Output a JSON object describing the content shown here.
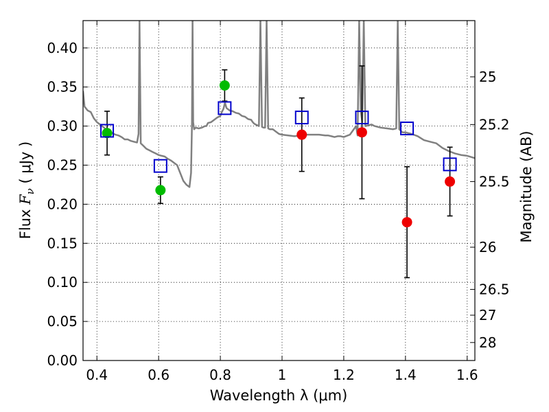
{
  "chart_data": {
    "type": "scatter",
    "xlabel": "Wavelength  λ (μm)",
    "ylabel_prefix": "Flux  ",
    "ylabel_symbol": "F",
    "ylabel_sub": "ν",
    "ylabel_suffix": "  ( μJy )",
    "ylabel_right": "Magnitude (AB)",
    "xlim": [
      0.355,
      1.625
    ],
    "ylim": [
      0.0,
      0.435
    ],
    "x_ticks": [
      0.4,
      0.6,
      0.8,
      1.0,
      1.2,
      1.4,
      1.6
    ],
    "x_tick_labels": [
      "0.4",
      "0.6",
      "0.8",
      "1",
      "1.2",
      "1.4",
      "1.6"
    ],
    "y_ticks": [
      0.0,
      0.05,
      0.1,
      0.15,
      0.2,
      0.25,
      0.3,
      0.35,
      0.4
    ],
    "y_tick_labels": [
      "0.00",
      "0.05",
      "0.10",
      "0.15",
      "0.20",
      "0.25",
      "0.30",
      "0.35",
      "0.40"
    ],
    "right_ticks": [
      {
        "label": "25",
        "flux": 0.363
      },
      {
        "label": "25.2",
        "flux": 0.302
      },
      {
        "label": "25.5",
        "flux": 0.229
      },
      {
        "label": "26",
        "flux": 0.145
      },
      {
        "label": "26.5",
        "flux": 0.091
      },
      {
        "label": "27",
        "flux": 0.058
      },
      {
        "label": "28",
        "flux": 0.023
      }
    ],
    "grid": true,
    "colors": {
      "model": "#808080",
      "optical_points": "#00bb00",
      "nir_points": "#ee0000",
      "model_points": "#0000cc",
      "errorbars": "#000000"
    },
    "model_spectrum": {
      "x": [
        0.355,
        0.36,
        0.37,
        0.38,
        0.39,
        0.4,
        0.41,
        0.42,
        0.43,
        0.44,
        0.45,
        0.46,
        0.47,
        0.48,
        0.49,
        0.5,
        0.51,
        0.52,
        0.53,
        0.535,
        0.538,
        0.542,
        0.55,
        0.56,
        0.57,
        0.58,
        0.59,
        0.6,
        0.61,
        0.62,
        0.63,
        0.64,
        0.65,
        0.66,
        0.67,
        0.68,
        0.69,
        0.7,
        0.705,
        0.708,
        0.71,
        0.712,
        0.715,
        0.72,
        0.73,
        0.74,
        0.75,
        0.755,
        0.76,
        0.77,
        0.78,
        0.79,
        0.8,
        0.805,
        0.81,
        0.815,
        0.82,
        0.83,
        0.84,
        0.845,
        0.85,
        0.86,
        0.87,
        0.88,
        0.89,
        0.9,
        0.905,
        0.91,
        0.92,
        0.925,
        0.93,
        0.935,
        0.94,
        0.945,
        0.95,
        0.955,
        0.96,
        0.97,
        0.98,
        0.99,
        1.0,
        1.02,
        1.04,
        1.06,
        1.08,
        1.1,
        1.12,
        1.14,
        1.15,
        1.16,
        1.17,
        1.18,
        1.19,
        1.2,
        1.22,
        1.24,
        1.245,
        1.25,
        1.255,
        1.26,
        1.265,
        1.27,
        1.28,
        1.29,
        1.3,
        1.32,
        1.34,
        1.36,
        1.37,
        1.375,
        1.38,
        1.385,
        1.39,
        1.4,
        1.41,
        1.42,
        1.44,
        1.46,
        1.48,
        1.5,
        1.52,
        1.54,
        1.56,
        1.58,
        1.6,
        1.625
      ],
      "y": [
        0.345,
        0.325,
        0.32,
        0.318,
        0.31,
        0.305,
        0.302,
        0.299,
        0.296,
        0.293,
        0.291,
        0.289,
        0.288,
        0.286,
        0.283,
        0.283,
        0.281,
        0.28,
        0.279,
        0.29,
        0.435,
        0.278,
        0.275,
        0.271,
        0.269,
        0.267,
        0.265,
        0.263,
        0.262,
        0.261,
        0.258,
        0.256,
        0.253,
        0.25,
        0.24,
        0.23,
        0.225,
        0.222,
        0.24,
        0.3,
        0.435,
        0.305,
        0.296,
        0.298,
        0.297,
        0.298,
        0.3,
        0.3,
        0.304,
        0.305,
        0.308,
        0.311,
        0.313,
        0.318,
        0.322,
        0.33,
        0.323,
        0.32,
        0.319,
        0.318,
        0.317,
        0.316,
        0.313,
        0.312,
        0.309,
        0.308,
        0.305,
        0.303,
        0.301,
        0.3,
        0.435,
        0.299,
        0.298,
        0.298,
        0.435,
        0.297,
        0.296,
        0.296,
        0.293,
        0.29,
        0.289,
        0.288,
        0.287,
        0.288,
        0.289,
        0.289,
        0.289,
        0.288,
        0.288,
        0.287,
        0.286,
        0.287,
        0.287,
        0.286,
        0.289,
        0.3,
        0.288,
        0.435,
        0.32,
        0.305,
        0.435,
        0.3,
        0.301,
        0.302,
        0.3,
        0.298,
        0.297,
        0.296,
        0.297,
        0.435,
        0.296,
        0.294,
        0.292,
        0.292,
        0.291,
        0.29,
        0.287,
        0.282,
        0.28,
        0.278,
        0.272,
        0.268,
        0.265,
        0.263,
        0.262,
        0.259
      ]
    },
    "optical_points": [
      {
        "x": 0.433,
        "y": 0.291,
        "yerr_low": 0.028,
        "yerr_high": 0.028
      },
      {
        "x": 0.606,
        "y": 0.218,
        "yerr_low": 0.017,
        "yerr_high": 0.017
      },
      {
        "x": 0.814,
        "y": 0.352,
        "yerr_low": 0.02,
        "yerr_high": 0.02
      }
    ],
    "nir_points": [
      {
        "x": 1.064,
        "y": 0.289,
        "yerr_low": 0.047,
        "yerr_high": 0.047
      },
      {
        "x": 1.259,
        "y": 0.292,
        "yerr_low": 0.085,
        "yerr_high": 0.085
      },
      {
        "x": 1.405,
        "y": 0.177,
        "yerr_low": 0.071,
        "yerr_high": 0.071
      },
      {
        "x": 1.544,
        "y": 0.229,
        "yerr_low": 0.044,
        "yerr_high": 0.044
      }
    ],
    "model_points": [
      {
        "x": 0.433,
        "y": 0.294
      },
      {
        "x": 0.606,
        "y": 0.249
      },
      {
        "x": 0.814,
        "y": 0.323
      },
      {
        "x": 1.064,
        "y": 0.311
      },
      {
        "x": 1.259,
        "y": 0.311
      },
      {
        "x": 1.405,
        "y": 0.297
      },
      {
        "x": 1.544,
        "y": 0.251
      }
    ]
  }
}
